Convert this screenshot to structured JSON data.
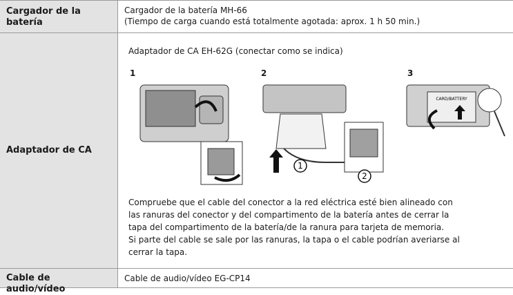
{
  "table": {
    "rows": [
      {
        "label": "Cargador de la batería",
        "content": [
          "Cargador de la batería MH-66",
          "(Tiempo de carga cuando está totalmente agotada: aprox. 1 h 50 min.)"
        ]
      },
      {
        "label": "Adaptador de CA",
        "intro": "Adaptador de CA EH-62G (conectar como se indica)",
        "steps": [
          "1",
          "2",
          "3"
        ],
        "figure_labels": [
          "1",
          "2",
          "CARD/BATTERY"
        ],
        "note_lines": [
          "Compruebe que el cable del conector a la red eléctrica esté bien alineado con",
          "las ranuras del conector y del compartimento de la batería antes de cerrar la",
          "tapa del compartimento de la batería/de la ranura para tarjeta de memoria.",
          "Si parte del cable se sale por las ranuras, la tapa o el cable podrían averiarse al",
          "cerrar la tapa."
        ]
      },
      {
        "label": "Cable de audio/vídeo",
        "content": [
          "Cable de audio/vídeo EG-CP14"
        ]
      }
    ]
  }
}
